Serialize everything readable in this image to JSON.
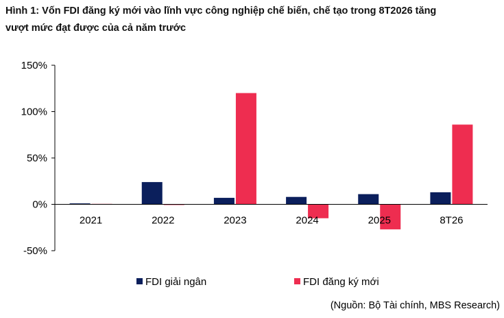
{
  "title_line1": "Hình 1: Vốn FDI đăng ký mới vào lĩnh vực công nghiệp chế biến, chế tạo trong 8T2026 tăng",
  "title_line2": "vượt mức đạt được của cả năm trước",
  "source": "(Nguồn: Bộ Tài chính, MBS Research)",
  "colors": {
    "disbursed": "#0b1f5c",
    "registered": "#ee2d50",
    "axis": "#000000",
    "text": "#000000"
  },
  "chart_data": {
    "type": "bar",
    "categories": [
      "2021",
      "2022",
      "2023",
      "2024",
      "2025",
      "8T26"
    ],
    "series": [
      {
        "name": "FDI giải ngân",
        "values": [
          1,
          24,
          7,
          8,
          11,
          13
        ]
      },
      {
        "name": "FDI đăng ký mới",
        "values": [
          0.5,
          -0.5,
          120,
          -15,
          -27,
          86
        ]
      }
    ],
    "yticks": [
      "150%",
      "100%",
      "50%",
      "0%",
      "-50%"
    ],
    "ylim": [
      -50,
      150
    ],
    "legend_position": "bottom",
    "grid": false
  }
}
